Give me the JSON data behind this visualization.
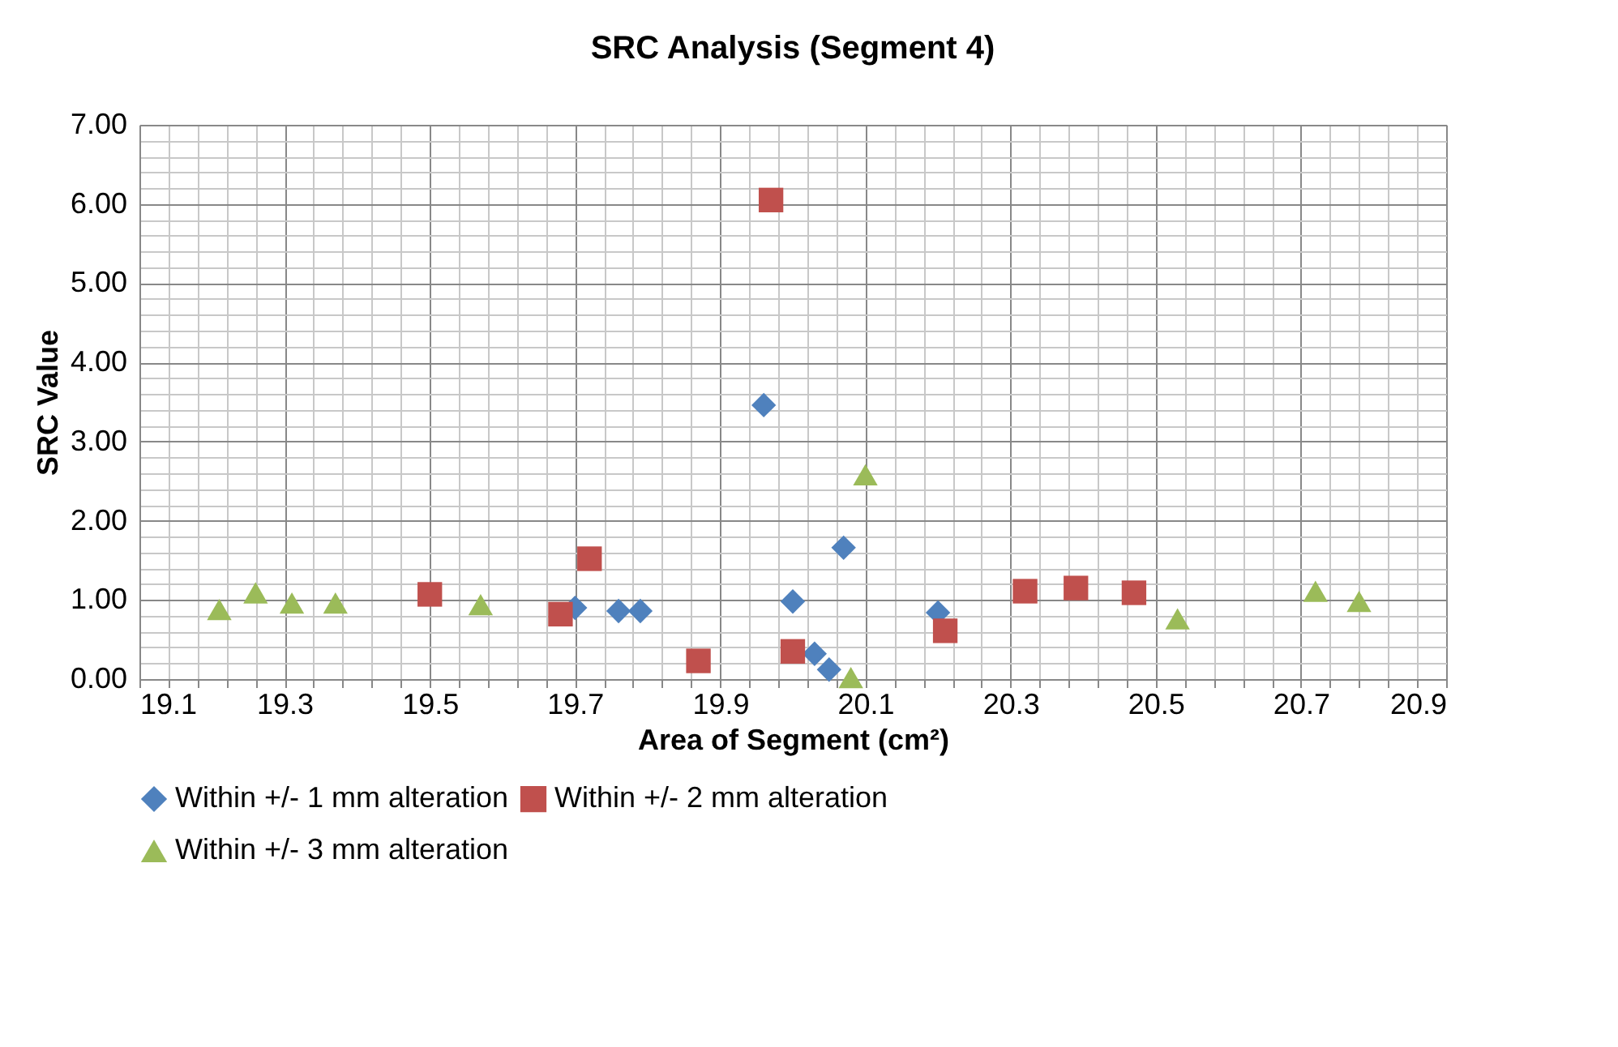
{
  "chart_data": {
    "type": "scatter",
    "title": "SRC Analysis (Segment 4)",
    "xlabel": "Area of Segment (cm²)",
    "ylabel": "SRC Value",
    "xlim": [
      19.1,
      20.9
    ],
    "ylim": [
      0,
      7
    ],
    "xticks": [
      19.1,
      {
        "value": 19.14,
        "label": null
      },
      {
        "value": 19.18,
        "label": null
      },
      {
        "value": 19.22,
        "label": null
      },
      {
        "value": 19.26,
        "label": null
      },
      19.3,
      {
        "value": 19.34,
        "label": null
      },
      {
        "value": 19.38,
        "label": null
      },
      {
        "value": 19.42,
        "label": null
      },
      {
        "value": 19.46,
        "label": null
      },
      19.5,
      {
        "value": 19.54,
        "label": null
      },
      {
        "value": 19.58,
        "label": null
      },
      {
        "value": 19.62,
        "label": null
      },
      {
        "value": 19.66,
        "label": null
      },
      19.7,
      {
        "value": 19.74,
        "label": null
      },
      {
        "value": 19.78,
        "label": null
      },
      {
        "value": 19.82,
        "label": null
      },
      {
        "value": 19.86,
        "label": null
      },
      19.9,
      {
        "value": 19.94,
        "label": null
      },
      {
        "value": 19.98,
        "label": null
      },
      {
        "value": 20.02,
        "label": null
      },
      {
        "value": 20.06,
        "label": null
      },
      20.1,
      {
        "value": 20.14,
        "label": null
      },
      {
        "value": 20.18,
        "label": null
      },
      {
        "value": 20.22,
        "label": null
      },
      {
        "value": 20.26,
        "label": null
      },
      20.3,
      {
        "value": 20.34,
        "label": null
      },
      {
        "value": 20.38,
        "label": null
      },
      {
        "value": 20.42,
        "label": null
      },
      {
        "value": 20.46,
        "label": null
      },
      20.5,
      {
        "value": 20.54,
        "label": null
      },
      {
        "value": 20.58,
        "label": null
      },
      {
        "value": 20.62,
        "label": null
      },
      {
        "value": 20.66,
        "label": null
      },
      20.7,
      {
        "value": 20.74,
        "label": null
      },
      {
        "value": 20.78,
        "label": null
      },
      {
        "value": 20.82,
        "label": null
      },
      {
        "value": 20.86,
        "label": null
      },
      20.9
    ],
    "yticks": [
      {
        "value": 0,
        "label": "0.00"
      },
      {
        "value": 0.2,
        "label": null
      },
      {
        "value": 0.4,
        "label": null
      },
      {
        "value": 0.6,
        "label": null
      },
      {
        "value": 0.8,
        "label": null
      },
      {
        "value": 1,
        "label": "1.00"
      },
      {
        "value": 1.2,
        "label": null
      },
      {
        "value": 1.4,
        "label": null
      },
      {
        "value": 1.6,
        "label": null
      },
      {
        "value": 1.8,
        "label": null
      },
      {
        "value": 2,
        "label": "2.00"
      },
      {
        "value": 2.2,
        "label": null
      },
      {
        "value": 2.4,
        "label": null
      },
      {
        "value": 2.6,
        "label": null
      },
      {
        "value": 2.8,
        "label": null
      },
      {
        "value": 3,
        "label": "3.00"
      },
      {
        "value": 3.2,
        "label": null
      },
      {
        "value": 3.4,
        "label": null
      },
      {
        "value": 3.6,
        "label": null
      },
      {
        "value": 3.8,
        "label": null
      },
      {
        "value": 4,
        "label": "4.00"
      },
      {
        "value": 4.2,
        "label": null
      },
      {
        "value": 4.4,
        "label": null
      },
      {
        "value": 4.6,
        "label": null
      },
      {
        "value": 4.8,
        "label": null
      },
      {
        "value": 5,
        "label": "5.00"
      },
      {
        "value": 5.2,
        "label": null
      },
      {
        "value": 5.4,
        "label": null
      },
      {
        "value": 5.6,
        "label": null
      },
      {
        "value": 5.8,
        "label": null
      },
      {
        "value": 6,
        "label": "6.00"
      },
      {
        "value": 6.2,
        "label": null
      },
      {
        "value": 6.4,
        "label": null
      },
      {
        "value": 6.6,
        "label": null
      },
      {
        "value": 6.8,
        "label": null
      },
      {
        "value": 7,
        "label": "7.00"
      }
    ],
    "grid": true,
    "legend": "bottom",
    "series": [
      {
        "name": "Within +/- 1 mm alteration",
        "color": "#4f81bd",
        "marker": "diamond",
        "x": [
          19.7,
          19.76,
          19.79,
          19.96,
          20.0,
          20.07,
          20.03,
          20.05,
          20.2
        ],
        "values": [
          0.9,
          0.86,
          0.86,
          3.46,
          0.98,
          1.66,
          0.32,
          0.12,
          0.84
        ]
      },
      {
        "name": "Within +/- 2 mm alteration",
        "color": "#c0504d",
        "marker": "square",
        "x": [
          19.5,
          19.68,
          19.72,
          19.87,
          19.97,
          20.0,
          20.21,
          20.32,
          20.39,
          20.47
        ],
        "values": [
          1.07,
          0.82,
          1.52,
          0.23,
          6.05,
          0.35,
          0.61,
          1.11,
          1.15,
          1.09
        ]
      },
      {
        "name": "Within +/- 3 mm alteration",
        "color": "#9bbb59",
        "marker": "triangle",
        "x": [
          19.21,
          19.26,
          19.31,
          19.37,
          19.57,
          20.08,
          20.1,
          20.53,
          20.72,
          20.78
        ],
        "values": [
          0.88,
          1.09,
          0.96,
          0.96,
          0.94,
          0.02,
          2.58,
          0.76,
          1.11,
          0.98
        ]
      }
    ]
  }
}
